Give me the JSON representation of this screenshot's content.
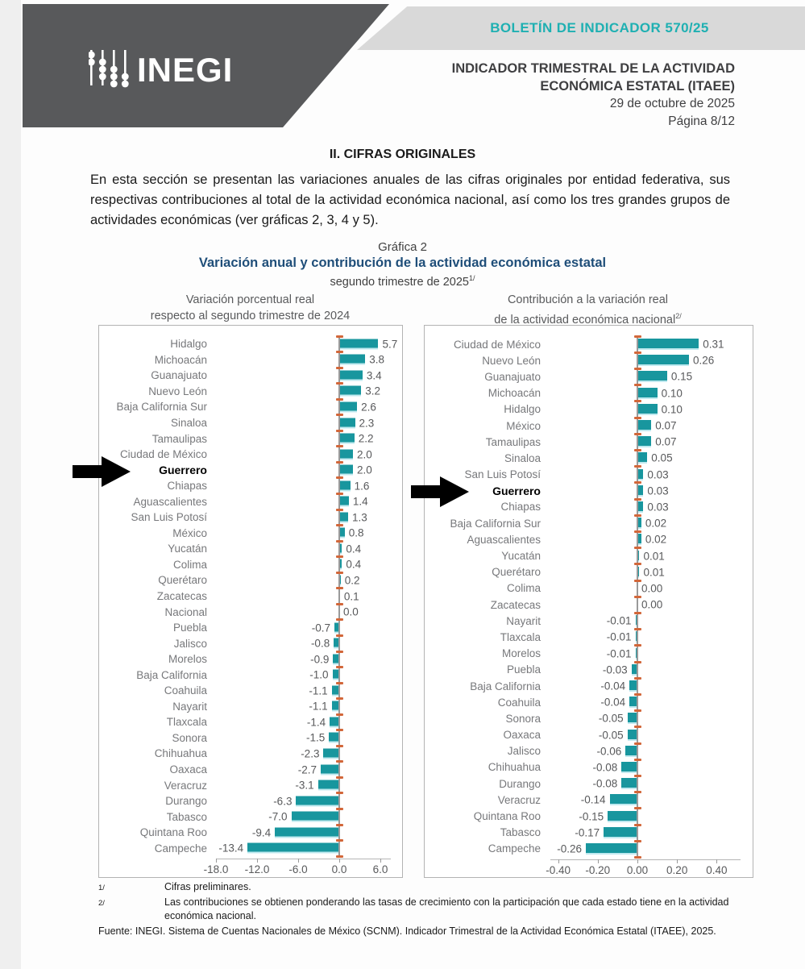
{
  "header": {
    "logo_text": "INEGI",
    "bulletin_label": "BOLETÍN DE INDICADOR 570/25",
    "title_line1": "INDICADOR TRIMESTRAL DE LA ACTIVIDAD",
    "title_line2": "ECONÓMICA ESTATAL (ITAEE)",
    "date": "29 de octubre de 2025",
    "page_number": "Página 8/12"
  },
  "section": {
    "heading": "II. CIFRAS ORIGINALES",
    "paragraph": "En esta sección se presentan las variaciones anuales de las cifras originales por entidad federativa, sus respectivas contribuciones al total de la actividad económica nacional, así como los tres grandes grupos de actividades económicas (ver gráficas 2, 3, 4 y 5)."
  },
  "figure": {
    "label": "Gráfica 2",
    "title": "Variación anual y contribución de la actividad económica estatal",
    "subtitle": "segundo trimestre de 2025",
    "subtitle_sup": "1/"
  },
  "colors": {
    "bar_teal": "#18969e",
    "tick_orange": "#d2673a",
    "accent_teal": "#1fb0b2",
    "title_blue": "#1f4e79",
    "header_gray": "#58595b"
  },
  "chart_data": [
    {
      "type": "bar",
      "orientation": "horizontal",
      "title_lines": [
        "Variación porcentual real",
        "respecto al segundo trimestre de 2024"
      ],
      "title_sup": "",
      "decimals": 1,
      "highlight": "Guerrero",
      "categories": [
        "Hidalgo",
        "Michoacán",
        "Guanajuato",
        "Nuevo León",
        "Baja California Sur",
        "Sinaloa",
        "Tamaulipas",
        "Ciudad de México",
        "Guerrero",
        "Chiapas",
        "Aguascalientes",
        "San Luis Potosí",
        "México",
        "Yucatán",
        "Colima",
        "Querétaro",
        "Zacatecas",
        "Nacional",
        "Puebla",
        "Jalisco",
        "Morelos",
        "Baja California",
        "Coahuila",
        "Nayarit",
        "Tlaxcala",
        "Sonora",
        "Chihuahua",
        "Oaxaca",
        "Veracruz",
        "Durango",
        "Tabasco",
        "Quintana Roo",
        "Campeche"
      ],
      "values": [
        5.7,
        3.8,
        3.4,
        3.2,
        2.6,
        2.3,
        2.2,
        2.0,
        2.0,
        1.6,
        1.4,
        1.3,
        0.8,
        0.4,
        0.4,
        0.2,
        0.1,
        0.0,
        -0.7,
        -0.8,
        -0.9,
        -1.0,
        -1.1,
        -1.1,
        -1.4,
        -1.5,
        -2.3,
        -2.7,
        -3.1,
        -6.3,
        -7.0,
        -9.4,
        -13.4
      ],
      "xlim": [
        -18.0,
        6.0
      ],
      "ticks": {
        "values": [
          -18.0,
          -12.0,
          -6.0,
          0.0,
          6.0
        ],
        "labels": [
          "-18.0",
          "-12.0",
          "-6.0",
          "0.0",
          "6.0"
        ]
      }
    },
    {
      "type": "bar",
      "orientation": "horizontal",
      "title_lines": [
        "Contribución a la variación real",
        "de la actividad económica nacional"
      ],
      "title_sup": "2/",
      "decimals": 2,
      "highlight": "Guerrero",
      "categories": [
        "Ciudad de México",
        "Nuevo León",
        "Guanajuato",
        "Michoacán",
        "Hidalgo",
        "México",
        "Tamaulipas",
        "Sinaloa",
        "San Luis Potosí",
        "Guerrero",
        "Chiapas",
        "Baja California Sur",
        "Aguascalientes",
        "Yucatán",
        "Querétaro",
        "Colima",
        "Zacatecas",
        "Nayarit",
        "Tlaxcala",
        "Morelos",
        "Puebla",
        "Baja California",
        "Coahuila",
        "Sonora",
        "Oaxaca",
        "Jalisco",
        "Chihuahua",
        "Durango",
        "Veracruz",
        "Quintana Roo",
        "Tabasco",
        "Campeche"
      ],
      "values": [
        0.31,
        0.26,
        0.15,
        0.1,
        0.1,
        0.07,
        0.07,
        0.05,
        0.03,
        0.03,
        0.03,
        0.02,
        0.02,
        0.01,
        0.01,
        0.0,
        0.0,
        -0.01,
        -0.01,
        -0.01,
        -0.03,
        -0.04,
        -0.04,
        -0.05,
        -0.05,
        -0.06,
        -0.08,
        -0.08,
        -0.14,
        -0.15,
        -0.17,
        -0.26
      ],
      "xlim": [
        -0.4,
        0.4
      ],
      "ticks": {
        "values": [
          -0.4,
          -0.2,
          0.0,
          0.2,
          0.4
        ],
        "labels": [
          "-0.40",
          "-0.20",
          "0.00",
          "0.20",
          "0.40"
        ]
      }
    }
  ],
  "footnotes": [
    {
      "marker": "1/",
      "text": "Cifras preliminares."
    },
    {
      "marker": "2/",
      "text": "Las contribuciones se obtienen ponderando las tasas de crecimiento con la participación que cada estado tiene en la actividad económica nacional."
    }
  ],
  "source": {
    "label": "Fuente:",
    "text": "INEGI. Sistema de Cuentas Nacionales de México (SCNM). Indicador Trimestral de la Actividad Económica Estatal (ITAEE), 2025."
  }
}
